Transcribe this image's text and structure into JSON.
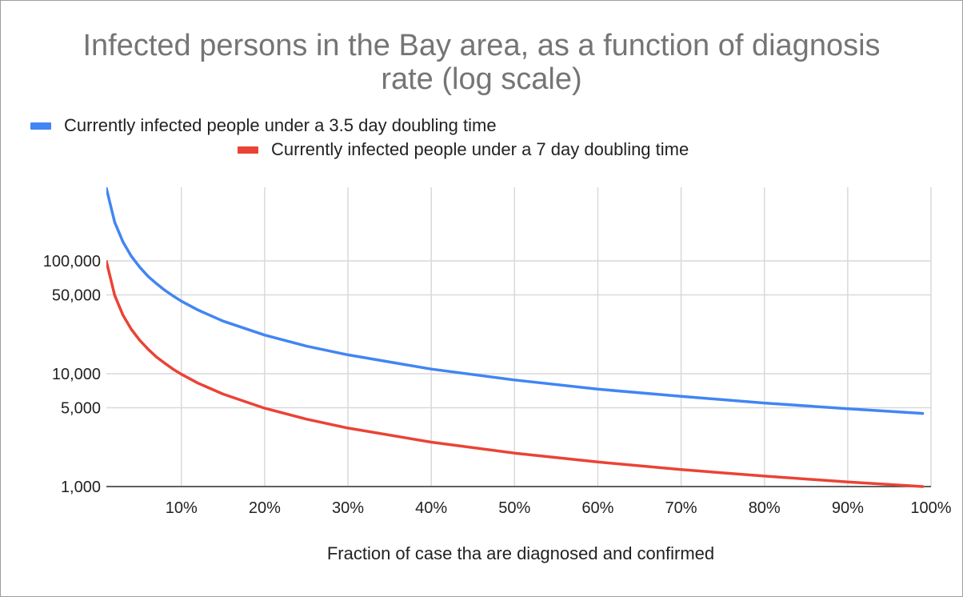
{
  "chart_data": {
    "type": "line",
    "title_line1": "Infected persons in the Bay area, as a function of diagnosis",
    "title_line2": "rate (log scale)",
    "xlabel": "Fraction of case tha are diagnosed and confirmed",
    "ylabel": "",
    "yscale": "log",
    "ylim": [
      1000,
      400000
    ],
    "xlim": [
      0.01,
      1.0
    ],
    "grid": true,
    "legend_position": "top",
    "x_ticks": [
      0.1,
      0.2,
      0.3,
      0.4,
      0.5,
      0.6,
      0.7,
      0.8,
      0.9,
      1.0
    ],
    "x_tick_labels": [
      "10%",
      "20%",
      "30%",
      "40%",
      "50%",
      "60%",
      "70%",
      "80%",
      "90%",
      "100%"
    ],
    "y_ticks": [
      1000,
      5000,
      10000,
      50000,
      100000
    ],
    "y_tick_labels": [
      "1,000",
      "5,000",
      "10,000",
      "50,000",
      "100,000"
    ],
    "x": [
      0.01,
      0.02,
      0.03,
      0.04,
      0.05,
      0.06,
      0.07,
      0.08,
      0.09,
      0.1,
      0.12,
      0.15,
      0.2,
      0.25,
      0.3,
      0.4,
      0.5,
      0.6,
      0.7,
      0.8,
      0.9,
      0.99
    ],
    "series": [
      {
        "name": "Currently infected people under a 3.5 day doubling time",
        "color": "#4285f4",
        "values": [
          440000,
          220000,
          147000,
          110000,
          88000,
          73000,
          63000,
          55000,
          49000,
          44000,
          36700,
          29300,
          22000,
          17600,
          14700,
          11000,
          8800,
          7300,
          6300,
          5500,
          4900,
          4450
        ]
      },
      {
        "name": "Currently infected people under a 7 day doubling time",
        "color": "#ea4335",
        "values": [
          99000,
          49500,
          33000,
          24750,
          19800,
          16500,
          14100,
          12400,
          11000,
          9900,
          8250,
          6600,
          4950,
          3960,
          3300,
          2475,
          1980,
          1650,
          1414,
          1238,
          1100,
          1000
        ]
      }
    ]
  }
}
